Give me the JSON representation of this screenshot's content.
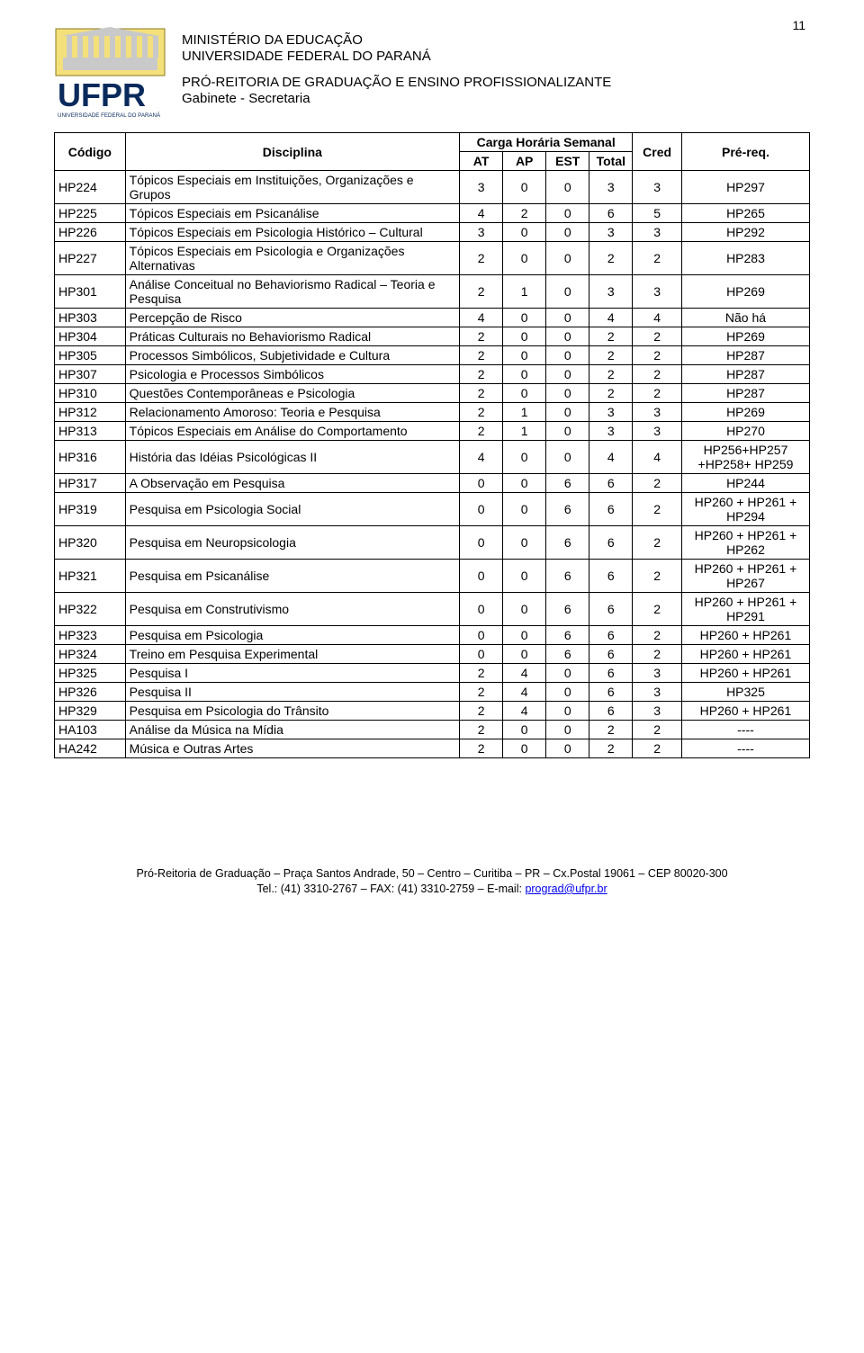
{
  "page_number": "11",
  "header": {
    "line1": "MINISTÉRIO DA EDUCAÇÃO",
    "line2": "UNIVERSIDADE FEDERAL DO PARANÁ",
    "line3": "PRÓ-REITORIA DE GRADUAÇÃO E ENSINO PROFISSIONALIZANTE",
    "line4": "Gabinete - Secretaria",
    "logo_text": "UFPR",
    "logo_subtext": "UNIVERSIDADE FEDERAL DO PARANÁ"
  },
  "table": {
    "header_row1": {
      "codigo": "Código",
      "disciplina": "Disciplina",
      "carga": "Carga Horária Semanal",
      "cred": "Cred",
      "prereq": "Pré-req."
    },
    "header_row2": {
      "at": "AT",
      "ap": "AP",
      "est": "EST",
      "total": "Total"
    },
    "rows": [
      {
        "codigo": "HP224",
        "disciplina": "Tópicos Especiais em Instituições, Organizações e Grupos",
        "at": "3",
        "ap": "0",
        "est": "0",
        "total": "3",
        "cred": "3",
        "prereq": "HP297"
      },
      {
        "codigo": "HP225",
        "disciplina": "Tópicos Especiais em Psicanálise",
        "at": "4",
        "ap": "2",
        "est": "0",
        "total": "6",
        "cred": "5",
        "prereq": "HP265"
      },
      {
        "codigo": "HP226",
        "disciplina": "Tópicos Especiais em Psicologia Histórico – Cultural",
        "at": "3",
        "ap": "0",
        "est": "0",
        "total": "3",
        "cred": "3",
        "prereq": "HP292"
      },
      {
        "codigo": "HP227",
        "disciplina": "Tópicos Especiais em Psicologia e Organizações Alternativas",
        "at": "2",
        "ap": "0",
        "est": "0",
        "total": "2",
        "cred": "2",
        "prereq": "HP283"
      },
      {
        "codigo": "HP301",
        "disciplina": "Análise Conceitual no Behaviorismo Radical – Teoria e Pesquisa",
        "at": "2",
        "ap": "1",
        "est": "0",
        "total": "3",
        "cred": "3",
        "prereq": "HP269"
      },
      {
        "codigo": "HP303",
        "disciplina": "Percepção de Risco",
        "at": "4",
        "ap": "0",
        "est": "0",
        "total": "4",
        "cred": "4",
        "prereq": "Não há"
      },
      {
        "codigo": "HP304",
        "disciplina": "Práticas Culturais no Behaviorismo Radical",
        "at": "2",
        "ap": "0",
        "est": "0",
        "total": "2",
        "cred": "2",
        "prereq": "HP269"
      },
      {
        "codigo": "HP305",
        "disciplina": "Processos Simbólicos, Subjetividade e Cultura",
        "at": "2",
        "ap": "0",
        "est": "0",
        "total": "2",
        "cred": "2",
        "prereq": "HP287"
      },
      {
        "codigo": "HP307",
        "disciplina": "Psicologia e Processos Simbólicos",
        "at": "2",
        "ap": "0",
        "est": "0",
        "total": "2",
        "cred": "2",
        "prereq": "HP287"
      },
      {
        "codigo": "HP310",
        "disciplina": "Questões Contemporâneas e Psicologia",
        "at": "2",
        "ap": "0",
        "est": "0",
        "total": "2",
        "cred": "2",
        "prereq": "HP287"
      },
      {
        "codigo": "HP312",
        "disciplina": "Relacionamento Amoroso: Teoria e Pesquisa",
        "at": "2",
        "ap": "1",
        "est": "0",
        "total": "3",
        "cred": "3",
        "prereq": "HP269"
      },
      {
        "codigo": "HP313",
        "disciplina": "Tópicos Especiais em Análise do Comportamento",
        "at": "2",
        "ap": "1",
        "est": "0",
        "total": "3",
        "cred": "3",
        "prereq": "HP270"
      },
      {
        "codigo": "HP316",
        "disciplina": "História das Idéias Psicológicas II",
        "at": "4",
        "ap": "0",
        "est": "0",
        "total": "4",
        "cred": "4",
        "prereq": "HP256+HP257 +HP258+ HP259"
      },
      {
        "codigo": "HP317",
        "disciplina": "A Observação em Pesquisa",
        "at": "0",
        "ap": "0",
        "est": "6",
        "total": "6",
        "cred": "2",
        "prereq": "HP244"
      },
      {
        "codigo": "HP319",
        "disciplina": "Pesquisa em Psicologia Social",
        "at": "0",
        "ap": "0",
        "est": "6",
        "total": "6",
        "cred": "2",
        "prereq": "HP260 + HP261 + HP294"
      },
      {
        "codigo": "HP320",
        "disciplina": "Pesquisa em Neuropsicologia",
        "at": "0",
        "ap": "0",
        "est": "6",
        "total": "6",
        "cred": "2",
        "prereq": "HP260 + HP261 + HP262"
      },
      {
        "codigo": "HP321",
        "disciplina": "Pesquisa em Psicanálise",
        "at": "0",
        "ap": "0",
        "est": "6",
        "total": "6",
        "cred": "2",
        "prereq": "HP260 + HP261 + HP267"
      },
      {
        "codigo": "HP322",
        "disciplina": "Pesquisa em Construtivismo",
        "at": "0",
        "ap": "0",
        "est": "6",
        "total": "6",
        "cred": "2",
        "prereq": "HP260 + HP261 + HP291"
      },
      {
        "codigo": "HP323",
        "disciplina": "Pesquisa em Psicologia",
        "at": "0",
        "ap": "0",
        "est": "6",
        "total": "6",
        "cred": "2",
        "prereq": "HP260 + HP261"
      },
      {
        "codigo": "HP324",
        "disciplina": "Treino em Pesquisa Experimental",
        "at": "0",
        "ap": "0",
        "est": "6",
        "total": "6",
        "cred": "2",
        "prereq": "HP260 + HP261"
      },
      {
        "codigo": "HP325",
        "disciplina": "Pesquisa I",
        "at": "2",
        "ap": "4",
        "est": "0",
        "total": "6",
        "cred": "3",
        "prereq": "HP260 + HP261"
      },
      {
        "codigo": "HP326",
        "disciplina": "Pesquisa II",
        "at": "2",
        "ap": "4",
        "est": "0",
        "total": "6",
        "cred": "3",
        "prereq": "HP325"
      },
      {
        "codigo": "HP329",
        "disciplina": "Pesquisa em Psicologia do Trânsito",
        "at": "2",
        "ap": "4",
        "est": "0",
        "total": "6",
        "cred": "3",
        "prereq": "HP260 + HP261"
      },
      {
        "codigo": "HA103",
        "disciplina": "Análise da Música na Mídia",
        "at": "2",
        "ap": "0",
        "est": "0",
        "total": "2",
        "cred": "2",
        "prereq": "----"
      },
      {
        "codigo": "HA242",
        "disciplina": "Música e Outras Artes",
        "at": "2",
        "ap": "0",
        "est": "0",
        "total": "2",
        "cred": "2",
        "prereq": "----"
      }
    ]
  },
  "footer": {
    "line1": "Pró-Reitoria de Graduação – Praça Santos Andrade, 50 – Centro – Curitiba – PR – Cx.Postal 19061 – CEP 80020-300",
    "line2a": "Tel.: (41) 3310-2767 – FAX: (41) 3310-2759 – E-mail: ",
    "email": "prograd@ufpr.br"
  },
  "colors": {
    "logo_blue": "#0a2a5c",
    "logo_yellow": "#f4e07a",
    "logo_gray": "#c9c9c9",
    "link_blue": "#0000ee",
    "border": "#000000",
    "text": "#000000",
    "background": "#ffffff"
  },
  "fonts": {
    "body_family": "Arial",
    "body_size_pt": 11,
    "header_size_pt": 12,
    "footer_size_pt": 10
  }
}
